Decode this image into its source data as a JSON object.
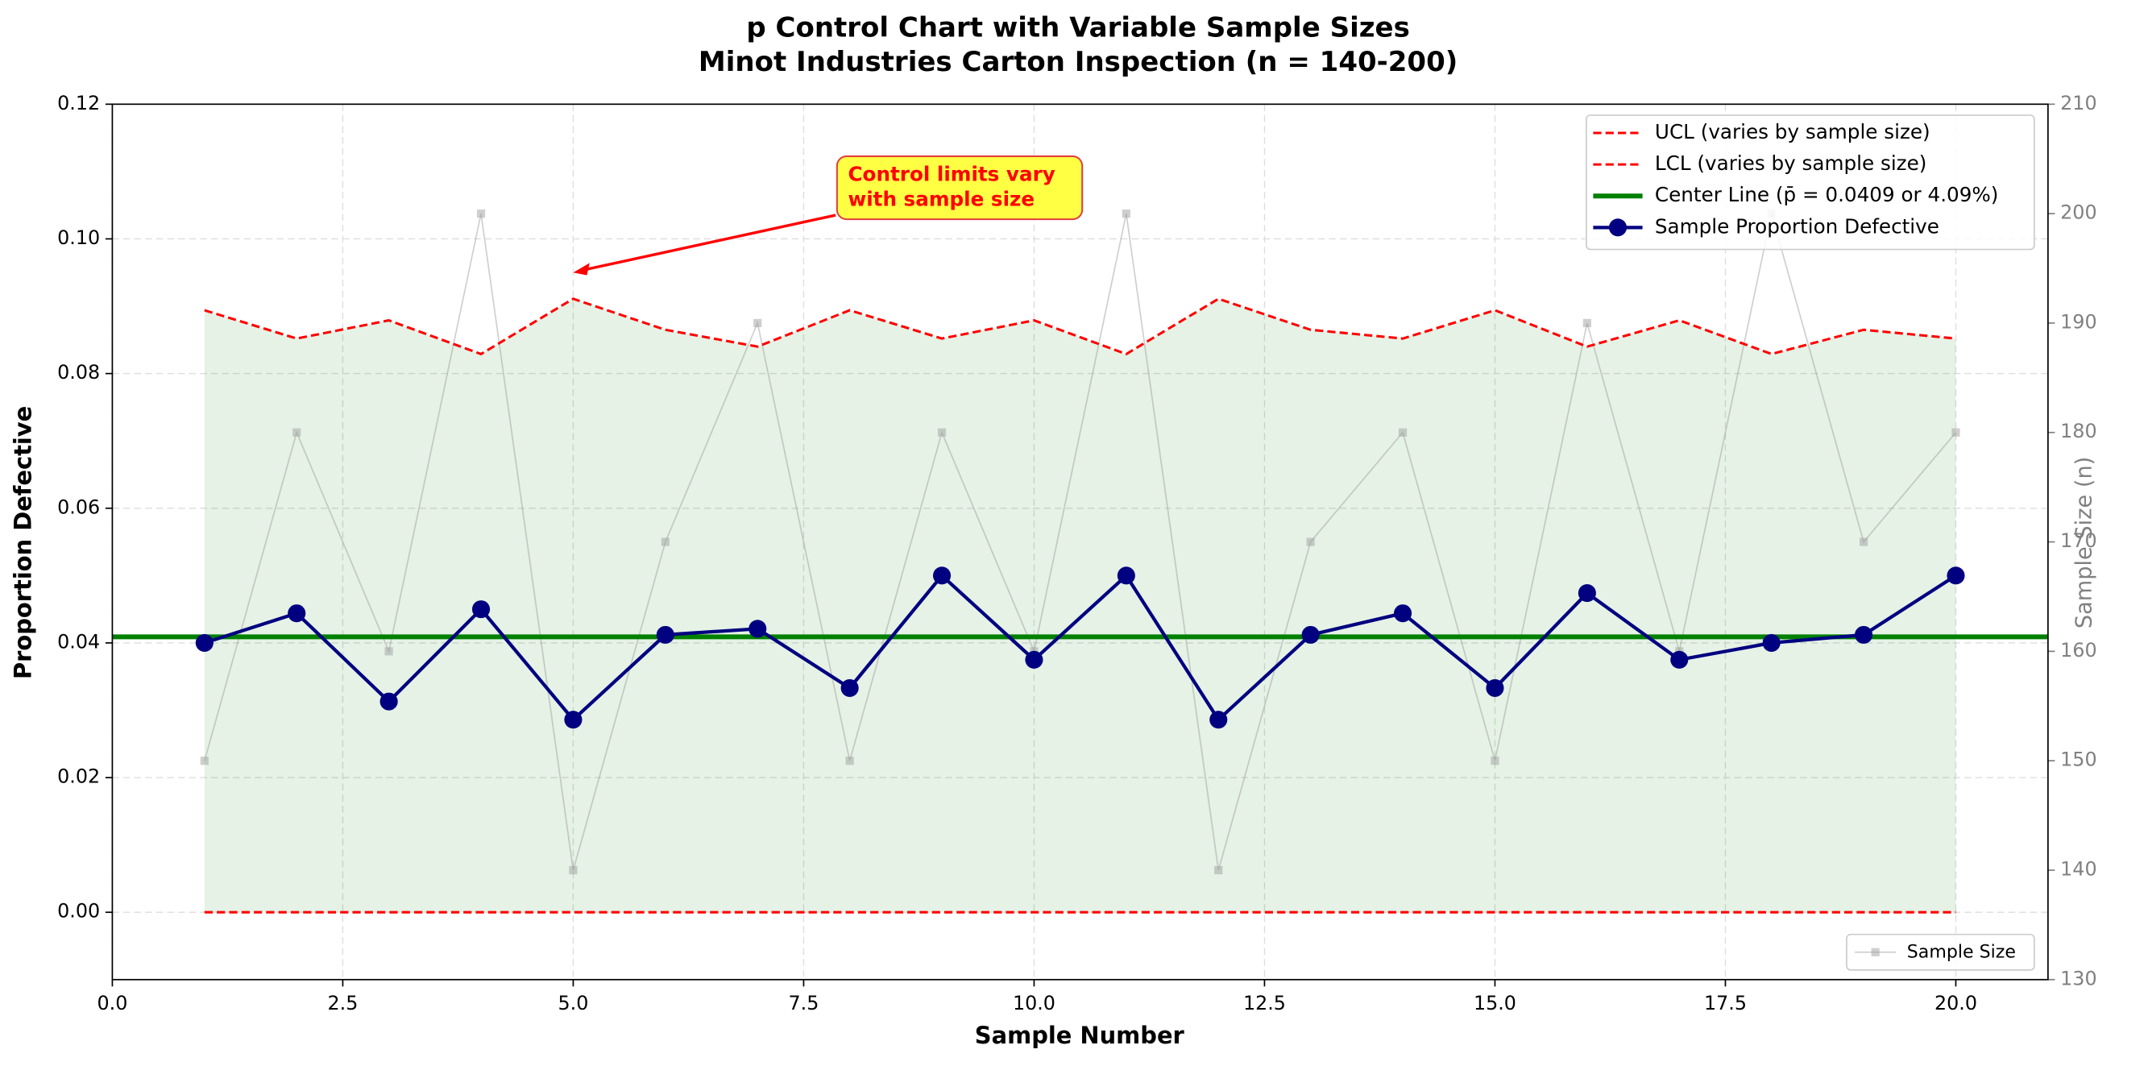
{
  "chart_data": {
    "type": "line",
    "title": [
      "p Control Chart with Variable Sample Sizes",
      "Minot Industries Carton Inspection (n = 140-200)"
    ],
    "xlabel": "Sample Number",
    "ylabel": "Proportion Defective",
    "y2label": "Sample Size (n)",
    "x": [
      1,
      2,
      3,
      4,
      5,
      6,
      7,
      8,
      9,
      10,
      11,
      12,
      13,
      14,
      15,
      16,
      17,
      18,
      19,
      20
    ],
    "series": [
      {
        "name": "UCL (varies by sample size)",
        "color": "#ff0000",
        "style": "dashed",
        "values": [
          0.0894,
          0.0852,
          0.0879,
          0.0829,
          0.0911,
          0.0865,
          0.084,
          0.0894,
          0.0852,
          0.0879,
          0.0829,
          0.0911,
          0.0865,
          0.0852,
          0.0894,
          0.084,
          0.0879,
          0.0829,
          0.0865,
          0.0852
        ]
      },
      {
        "name": "LCL (varies by sample size)",
        "color": "#ff0000",
        "style": "dashed",
        "values": [
          0,
          0,
          0,
          0,
          0,
          0,
          0,
          0,
          0,
          0,
          0,
          0,
          0,
          0,
          0,
          0,
          0,
          0,
          0,
          0
        ]
      },
      {
        "name": "Center Line (p̄ = 0.0409 or 4.09%)",
        "color": "#008000",
        "style": "hline",
        "value": 0.0409
      },
      {
        "name": "Sample Proportion Defective",
        "color": "#000080",
        "style": "markers",
        "values": [
          0.04,
          0.0444,
          0.0313,
          0.045,
          0.0286,
          0.0412,
          0.0421,
          0.0333,
          0.05,
          0.0375,
          0.05,
          0.0286,
          0.0412,
          0.0444,
          0.0333,
          0.0474,
          0.0375,
          0.04,
          0.0412,
          0.05
        ]
      },
      {
        "name": "Sample Size",
        "color": "#a0a0a0",
        "style": "squares",
        "axis": "y2",
        "values": [
          150,
          180,
          160,
          200,
          140,
          170,
          190,
          150,
          180,
          160,
          200,
          140,
          170,
          180,
          150,
          190,
          160,
          200,
          170,
          180
        ]
      }
    ],
    "band_color": "#008000",
    "annotation": {
      "text": [
        "Control limits vary",
        "with sample size"
      ],
      "x": 5,
      "y": 0.095
    },
    "xlim": [
      0,
      21
    ],
    "ylim": [
      -0.01,
      0.12
    ],
    "y2lim": [
      130,
      210
    ],
    "xticks": [
      {
        "value": 0,
        "label": "0.0"
      },
      {
        "value": 2.5,
        "label": "2.5"
      },
      {
        "value": 5,
        "label": "5.0"
      },
      {
        "value": 7.5,
        "label": "7.5"
      },
      {
        "value": 10,
        "label": "10.0"
      },
      {
        "value": 12.5,
        "label": "12.5"
      },
      {
        "value": 15,
        "label": "15.0"
      },
      {
        "value": 17.5,
        "label": "17.5"
      },
      {
        "value": 20,
        "label": "20.0"
      }
    ],
    "yticks": [
      {
        "value": 0,
        "label": "0.00"
      },
      {
        "value": 0.02,
        "label": "0.02"
      },
      {
        "value": 0.04,
        "label": "0.04"
      },
      {
        "value": 0.06,
        "label": "0.06"
      },
      {
        "value": 0.08,
        "label": "0.08"
      },
      {
        "value": 0.1,
        "label": "0.10"
      },
      {
        "value": 0.12,
        "label": "0.12"
      }
    ],
    "y2ticks": [
      130,
      140,
      150,
      160,
      170,
      180,
      190,
      200,
      210
    ],
    "grid": true,
    "legend": "upper right",
    "legend2": "lower right"
  }
}
